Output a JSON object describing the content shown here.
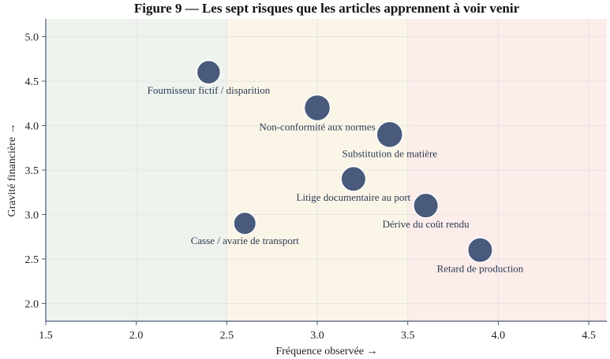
{
  "chart_data": {
    "type": "scatter",
    "title": "Figure 9 — Les sept risques que les articles apprennent à voir venir",
    "xlabel": "Fréquence observée →",
    "ylabel": "Gravité financière →",
    "xlim": [
      1.5,
      4.6
    ],
    "ylim": [
      1.8,
      5.2
    ],
    "xticks": [
      "1.5",
      "2.0",
      "2.5",
      "3.0",
      "3.5",
      "4.0",
      "4.5"
    ],
    "yticks": [
      "2.0",
      "2.5",
      "3.0",
      "3.5",
      "4.0",
      "4.5",
      "5.0"
    ],
    "grid": true,
    "zones": [
      {
        "from": 1.5,
        "to": 2.5,
        "color": "#eef3ee"
      },
      {
        "from": 2.5,
        "to": 3.5,
        "color": "#fbf5e8"
      },
      {
        "from": 3.5,
        "to": 4.6,
        "color": "#fcecea"
      }
    ],
    "marker_color": "#4a5a7c",
    "points": [
      {
        "label": "Fournisseur fictif / disparition",
        "x": 2.4,
        "y": 4.6,
        "size": 1.0,
        "label_pos": "below"
      },
      {
        "label": "Non-conformité aux normes",
        "x": 3.0,
        "y": 4.2,
        "size": 1.1,
        "label_pos": "below"
      },
      {
        "label": "Substitution de matière",
        "x": 3.4,
        "y": 3.9,
        "size": 1.1,
        "label_pos": "below"
      },
      {
        "label": "Litige documentaire au port",
        "x": 3.2,
        "y": 3.4,
        "size": 1.05,
        "label_pos": "below"
      },
      {
        "label": "Dérive du coût rendu",
        "x": 3.6,
        "y": 3.1,
        "size": 1.05,
        "label_pos": "below"
      },
      {
        "label": "Casse / avarie de transport",
        "x": 2.6,
        "y": 2.9,
        "size": 0.95,
        "label_pos": "below"
      },
      {
        "label": "Retard de production",
        "x": 3.9,
        "y": 2.6,
        "size": 1.05,
        "label_pos": "below"
      }
    ]
  }
}
